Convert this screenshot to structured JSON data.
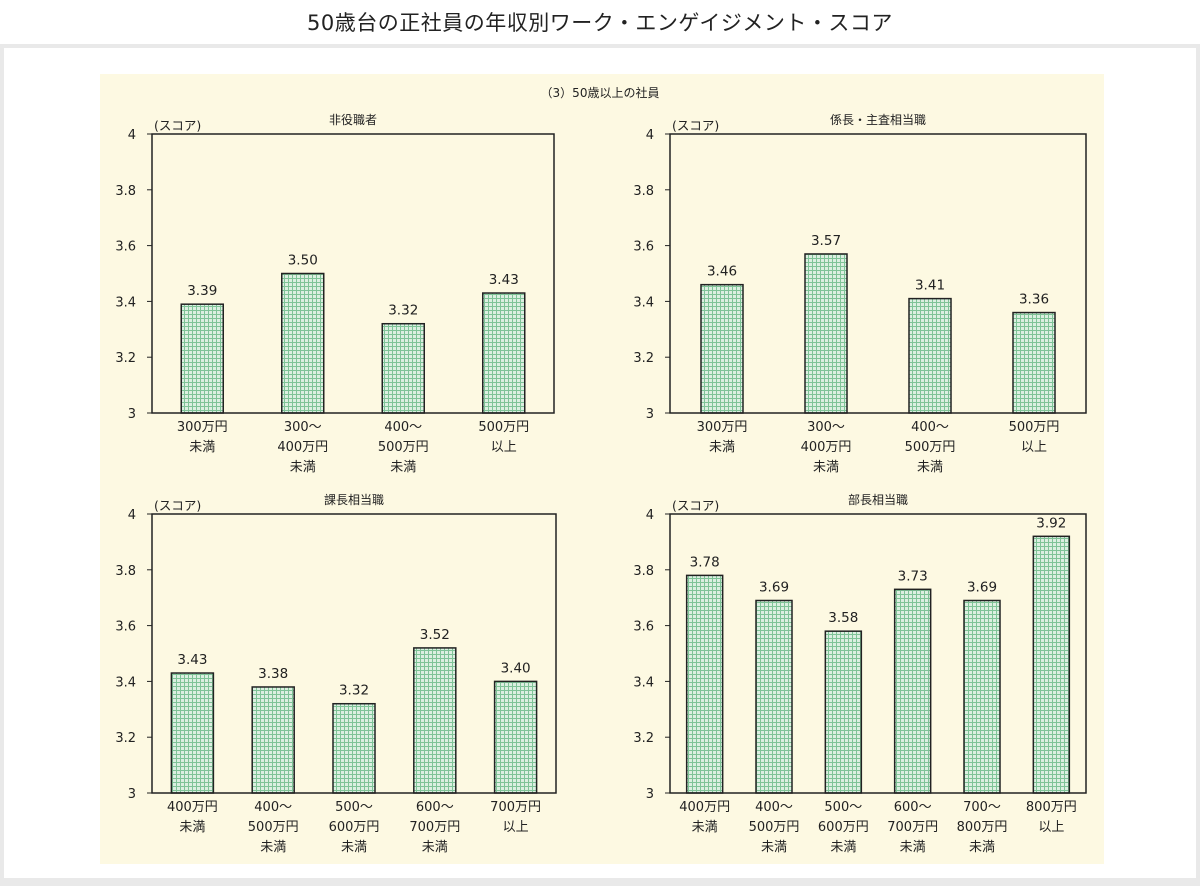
{
  "header": {
    "title": "50歳台の正社員の年収別ワーク・エンゲイジメント・スコア"
  },
  "figure": {
    "heading": "（3）50歳以上の社員"
  },
  "chart_data": [
    {
      "type": "bar",
      "title": "非役職者",
      "ylabel": "(スコア)",
      "ylim": [
        3,
        4
      ],
      "yticks": [
        "3",
        "3.2",
        "3.4",
        "3.6",
        "3.8",
        "4"
      ],
      "categories": [
        "300万円\n未満",
        "300～\n400万円\n未満",
        "400～\n500万円\n未満",
        "500万円\n以上"
      ],
      "values": [
        3.39,
        3.5,
        3.32,
        3.43
      ],
      "labels": [
        "3.39",
        "3.50",
        "3.32",
        "3.43"
      ]
    },
    {
      "type": "bar",
      "title": "係長・主査相当職",
      "ylabel": "(スコア)",
      "ylim": [
        3,
        4
      ],
      "yticks": [
        "3",
        "3.2",
        "3.4",
        "3.6",
        "3.8",
        "4"
      ],
      "categories": [
        "300万円\n未満",
        "300～\n400万円\n未満",
        "400～\n500万円\n未満",
        "500万円\n以上"
      ],
      "values": [
        3.46,
        3.57,
        3.41,
        3.36
      ],
      "labels": [
        "3.46",
        "3.57",
        "3.41",
        "3.36"
      ]
    },
    {
      "type": "bar",
      "title": "課長相当職",
      "ylabel": "(スコア)",
      "ylim": [
        3,
        4
      ],
      "yticks": [
        "3",
        "3.2",
        "3.4",
        "3.6",
        "3.8",
        "4"
      ],
      "categories": [
        "400万円\n未満",
        "400～\n500万円\n未満",
        "500～\n600万円\n未満",
        "600～\n700万円\n未満",
        "700万円\n以上"
      ],
      "values": [
        3.43,
        3.38,
        3.32,
        3.52,
        3.4
      ],
      "labels": [
        "3.43",
        "3.38",
        "3.32",
        "3.52",
        "3.40"
      ]
    },
    {
      "type": "bar",
      "title": "部長相当職",
      "ylabel": "(スコア)",
      "ylim": [
        3,
        4
      ],
      "yticks": [
        "3",
        "3.2",
        "3.4",
        "3.6",
        "3.8",
        "4"
      ],
      "categories": [
        "400万円\n未満",
        "400～\n500万円\n未満",
        "500～\n600万円\n未満",
        "600～\n700万円\n未満",
        "700～\n800万円\n未満",
        "800万円\n以上"
      ],
      "values": [
        3.78,
        3.69,
        3.58,
        3.73,
        3.69,
        3.92
      ],
      "labels": [
        "3.78",
        "3.69",
        "3.58",
        "3.73",
        "3.69",
        "3.92"
      ]
    }
  ],
  "colors": {
    "bar_fill": "#dcefe1",
    "bar_grid": "#7fc397",
    "bar_stroke": "#222222",
    "figure_bg": "#fdf9e2"
  }
}
